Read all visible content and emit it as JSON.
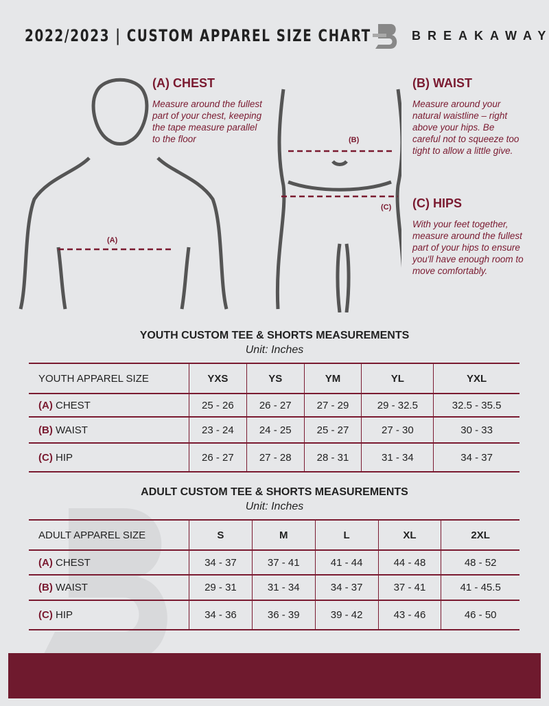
{
  "header": {
    "title": "2022/2023  |  CUSTOM APPAREL SIZE CHART",
    "brand": "BREAKAWAY"
  },
  "guide": {
    "chest": {
      "heading": "(A) CHEST",
      "text": "Measure around the fullest part of your chest, keeping the tape measure parallel to the floor",
      "marker": "(A)"
    },
    "waist": {
      "heading": "(B) WAIST",
      "text": "Measure around your natural waistline – right above your hips. Be careful not to squeeze too tight to allow a little give.",
      "marker": "(B)"
    },
    "hips": {
      "heading": "(C) HIPS",
      "text": "With your feet together, measure around the fullest part of your hips to ensure you'll have enough room to move comfortably.",
      "marker": "(C)"
    }
  },
  "youth": {
    "title": "YOUTH CUSTOM TEE & SHORTS MEASUREMENTS",
    "unit": "Unit: Inches",
    "size_label": "YOUTH APPAREL SIZE",
    "sizes": [
      "YXS",
      "YS",
      "YM",
      "YL",
      "YXL"
    ],
    "rows": [
      {
        "letter": "(A)",
        "name": "CHEST",
        "values": [
          "25 - 26",
          "26 - 27",
          "27 - 29",
          "29 - 32.5",
          "32.5 - 35.5"
        ]
      },
      {
        "letter": "(B)",
        "name": "WAIST",
        "values": [
          "23 - 24",
          "24 - 25",
          "25 - 27",
          "27 - 30",
          "30 - 33"
        ]
      },
      {
        "letter": "(C)",
        "name": "HIP",
        "values": [
          "26 - 27",
          "27 - 28",
          "28 - 31",
          "31 - 34",
          "34 - 37"
        ]
      }
    ]
  },
  "adult": {
    "title": "ADULT CUSTOM TEE & SHORTS MEASUREMENTS",
    "unit": "Unit: Inches",
    "size_label": "ADULT APPAREL SIZE",
    "sizes": [
      "S",
      "M",
      "L",
      "XL",
      "2XL"
    ],
    "rows": [
      {
        "letter": "(A)",
        "name": "CHEST",
        "values": [
          "34 - 37",
          "37 - 41",
          "41 - 44",
          "44 - 48",
          "48 - 52"
        ]
      },
      {
        "letter": "(B)",
        "name": "WAIST",
        "values": [
          "29 - 31",
          "31 - 34",
          "34 - 37",
          "37 - 41",
          "41 - 45.5"
        ]
      },
      {
        "letter": "(C)",
        "name": "HIP",
        "values": [
          "34 - 36",
          "36 - 39",
          "39 - 42",
          "43 - 46",
          "46 - 50"
        ]
      }
    ]
  },
  "colors": {
    "accent": "#7a1a30",
    "background": "#e6e7e9"
  }
}
